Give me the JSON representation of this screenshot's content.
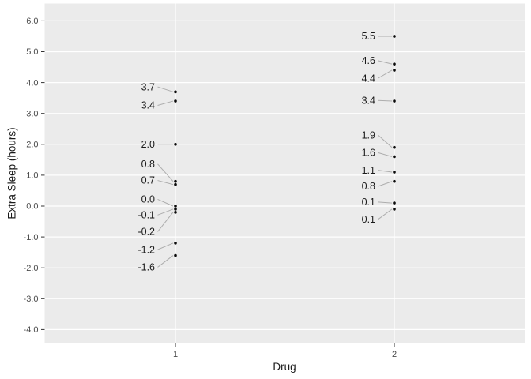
{
  "chart_data": {
    "type": "scatter",
    "title": "",
    "xlabel": "Drug",
    "ylabel": "Extra Sleep (hours)",
    "legend": "none",
    "grid": "major gridlines only, white on gray panel",
    "xlim": [
      0.45,
      2.6
    ],
    "ylim": [
      -4.45,
      6.55
    ],
    "x_ticks": [
      {
        "value": 1,
        "label": "1"
      },
      {
        "value": 2,
        "label": "2"
      }
    ],
    "y_ticks": [
      {
        "value": 6,
        "label": "6.0"
      },
      {
        "value": 5,
        "label": "5.0"
      },
      {
        "value": 4,
        "label": "4.0"
      },
      {
        "value": 3,
        "label": "3.0"
      },
      {
        "value": 2,
        "label": "2.0"
      },
      {
        "value": 1,
        "label": "1.0"
      },
      {
        "value": 0,
        "label": "0.0"
      },
      {
        "value": -1,
        "label": "-1.0"
      },
      {
        "value": -2,
        "label": "-2.0"
      },
      {
        "value": -3,
        "label": "-3.0"
      },
      {
        "value": -4,
        "label": "-4.0"
      }
    ],
    "series": [
      {
        "name": "1",
        "x": 1,
        "points": [
          {
            "value": 3.7,
            "label": "3.7",
            "label_y": 3.86
          },
          {
            "value": 3.4,
            "label": "3.4",
            "label_y": 3.26
          },
          {
            "value": 2.0,
            "label": "2.0",
            "label_y": 2.0
          },
          {
            "value": 0.8,
            "label": "0.8",
            "label_y": 1.36
          },
          {
            "value": 0.7,
            "label": "0.7",
            "label_y": 0.83
          },
          {
            "value": 0.0,
            "label": "0.0",
            "label_y": 0.22
          },
          {
            "value": -0.1,
            "label": "-0.1",
            "label_y": -0.29
          },
          {
            "value": -0.2,
            "label": "-0.2",
            "label_y": -0.83
          },
          {
            "value": -1.2,
            "label": "-1.2",
            "label_y": -1.41
          },
          {
            "value": -1.6,
            "label": "-1.6",
            "label_y": -1.98
          }
        ]
      },
      {
        "name": "2",
        "x": 2,
        "points": [
          {
            "value": 5.5,
            "label": "5.5",
            "label_y": 5.5
          },
          {
            "value": 4.6,
            "label": "4.6",
            "label_y": 4.71
          },
          {
            "value": 4.4,
            "label": "4.4",
            "label_y": 4.14
          },
          {
            "value": 3.4,
            "label": "3.4",
            "label_y": 3.42
          },
          {
            "value": 1.9,
            "label": "1.9",
            "label_y": 2.3
          },
          {
            "value": 1.6,
            "label": "1.6",
            "label_y": 1.73
          },
          {
            "value": 1.1,
            "label": "1.1",
            "label_y": 1.16
          },
          {
            "value": 0.8,
            "label": "0.8",
            "label_y": 0.64
          },
          {
            "value": 0.1,
            "label": "0.1",
            "label_y": 0.13
          },
          {
            "value": -0.1,
            "label": "-0.1",
            "label_y": -0.43
          }
        ]
      }
    ],
    "colors": {
      "panel_bg": "#EBEBEB",
      "gridline": "#FFFFFF",
      "point": "#0A0A0A",
      "data_label": "#1A1A1A",
      "tick_label": "#4D4D4D",
      "axis_title": "#1A1A1A",
      "leader_line": "#ADADAD",
      "tick_mark": "#333333"
    }
  }
}
